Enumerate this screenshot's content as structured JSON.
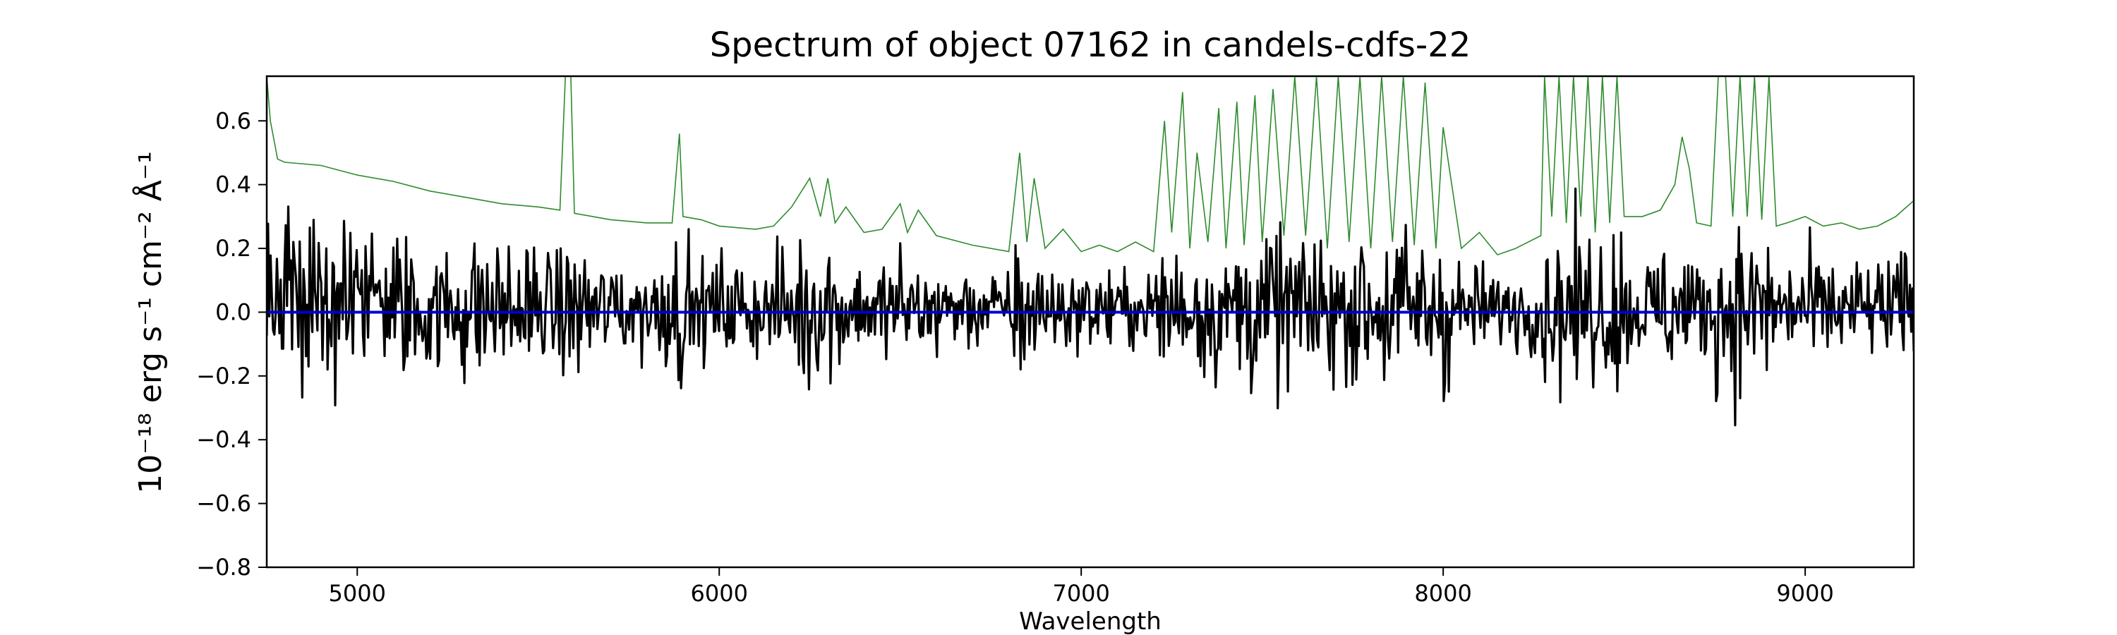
{
  "chart_data": {
    "type": "line",
    "title": "Spectrum of object 07162 in candels-cdfs-22",
    "xlabel": "Wavelength",
    "ylabel": "10⁻¹⁸ erg s⁻¹ cm⁻² Å⁻¹",
    "xlim": [
      4750,
      9300
    ],
    "ylim": [
      -0.8,
      0.74
    ],
    "xticks": [
      5000,
      6000,
      7000,
      8000,
      9000
    ],
    "yticks": [
      -0.8,
      -0.6,
      -0.4,
      -0.2,
      0.0,
      0.2,
      0.4,
      0.6
    ],
    "ytick_labels": [
      "−0.8",
      "−0.6",
      "−0.4",
      "−0.2",
      "0.0",
      "0.2",
      "0.4",
      "0.6"
    ],
    "grid": false,
    "series": [
      {
        "role": "zero",
        "color": "#0000cc",
        "x": [
          4750,
          9300
        ],
        "y": [
          0.0,
          0.0
        ]
      },
      {
        "role": "error",
        "color": "#2e8b2e",
        "x": [
          4750,
          4760,
          4780,
          4800,
          4900,
          5000,
          5100,
          5200,
          5300,
          5400,
          5500,
          5560,
          5575,
          5590,
          5600,
          5700,
          5800,
          5870,
          5890,
          5900,
          5950,
          6000,
          6100,
          6150,
          6200,
          6250,
          6280,
          6300,
          6320,
          6350,
          6400,
          6450,
          6500,
          6520,
          6550,
          6600,
          6700,
          6800,
          6830,
          6850,
          6870,
          6900,
          6950,
          7000,
          7050,
          7100,
          7150,
          7200,
          7230,
          7250,
          7280,
          7300,
          7320,
          7350,
          7380,
          7400,
          7430,
          7450,
          7480,
          7500,
          7530,
          7560,
          7590,
          7620,
          7650,
          7680,
          7710,
          7740,
          7770,
          7800,
          7830,
          7860,
          7890,
          7920,
          7950,
          7980,
          8000,
          8050,
          8100,
          8150,
          8200,
          8270,
          8280,
          8300,
          8320,
          8340,
          8360,
          8380,
          8400,
          8420,
          8440,
          8460,
          8480,
          8500,
          8550,
          8600,
          8640,
          8660,
          8680,
          8700,
          8740,
          8760,
          8780,
          8800,
          8820,
          8840,
          8860,
          8880,
          8900,
          8920,
          8950,
          9000,
          9050,
          9100,
          9150,
          9200,
          9250,
          9300
        ],
        "y": [
          0.74,
          0.6,
          0.48,
          0.47,
          0.46,
          0.43,
          0.41,
          0.38,
          0.36,
          0.34,
          0.33,
          0.32,
          0.74,
          0.74,
          0.31,
          0.29,
          0.28,
          0.28,
          0.56,
          0.3,
          0.29,
          0.27,
          0.26,
          0.27,
          0.33,
          0.42,
          0.3,
          0.42,
          0.28,
          0.33,
          0.25,
          0.26,
          0.34,
          0.25,
          0.32,
          0.24,
          0.21,
          0.19,
          0.5,
          0.22,
          0.42,
          0.2,
          0.26,
          0.19,
          0.21,
          0.19,
          0.22,
          0.19,
          0.6,
          0.25,
          0.69,
          0.2,
          0.5,
          0.22,
          0.64,
          0.2,
          0.66,
          0.21,
          0.68,
          0.22,
          0.7,
          0.24,
          0.74,
          0.24,
          0.74,
          0.2,
          0.74,
          0.22,
          0.74,
          0.2,
          0.74,
          0.22,
          0.74,
          0.21,
          0.72,
          0.2,
          0.58,
          0.2,
          0.25,
          0.18,
          0.2,
          0.24,
          0.74,
          0.3,
          0.74,
          0.28,
          0.74,
          0.3,
          0.74,
          0.25,
          0.74,
          0.28,
          0.74,
          0.3,
          0.3,
          0.32,
          0.4,
          0.55,
          0.45,
          0.28,
          0.27,
          0.74,
          0.74,
          0.3,
          0.74,
          0.3,
          0.74,
          0.29,
          0.74,
          0.27,
          0.28,
          0.3,
          0.27,
          0.28,
          0.26,
          0.27,
          0.3,
          0.35
        ]
      }
    ]
  }
}
